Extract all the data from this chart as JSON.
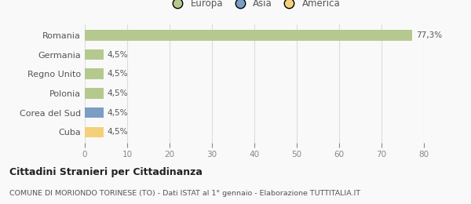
{
  "categories": [
    "Romania",
    "Germania",
    "Regno Unito",
    "Polonia",
    "Corea del Sud",
    "Cuba"
  ],
  "values": [
    77.3,
    4.5,
    4.5,
    4.5,
    4.5,
    4.5
  ],
  "bar_colors": [
    "#b5c98e",
    "#b5c98e",
    "#b5c98e",
    "#b5c98e",
    "#7b9ec4",
    "#f5d07a"
  ],
  "xlim": [
    0,
    80
  ],
  "xticks": [
    0,
    10,
    20,
    30,
    40,
    50,
    60,
    70,
    80
  ],
  "value_labels": [
    "77,3%",
    "4,5%",
    "4,5%",
    "4,5%",
    "4,5%",
    "4,5%"
  ],
  "legend_labels": [
    "Europa",
    "Asia",
    "America"
  ],
  "legend_colors": [
    "#b5c98e",
    "#7b9ec4",
    "#f5d07a"
  ],
  "title": "Cittadini Stranieri per Cittadinanza",
  "subtitle": "COMUNE DI MORIONDO TORINESE (TO) - Dati ISTAT al 1° gennaio - Elaborazione TUTTITALIA.IT",
  "bg_color": "#f9f9f9",
  "grid_color": "#dddddd",
  "label_color": "#888888",
  "text_color": "#555555"
}
